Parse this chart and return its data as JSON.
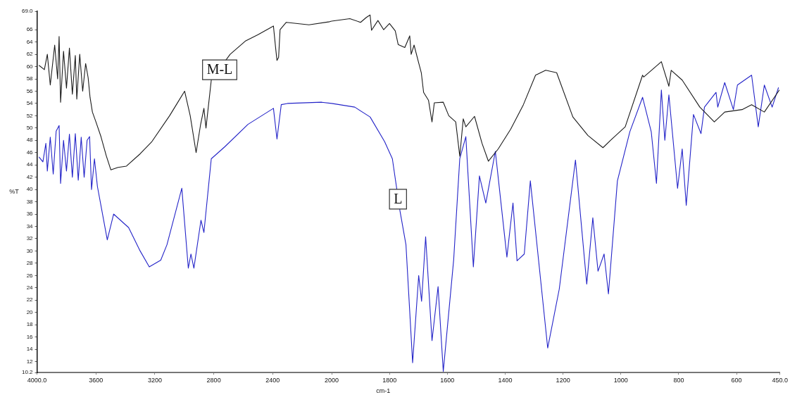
{
  "chart_data": [
    {
      "type": "line",
      "ylabel": "%T",
      "xlim": [
        4000,
        2000
      ],
      "ylim": [
        10.2,
        69.0
      ],
      "xticks": [
        {
          "value": 4000,
          "label": "4000.0"
        },
        3600,
        3200,
        2800,
        2400,
        2000
      ],
      "yticks": [
        {
          "value": 10.2,
          "label": "10.2"
        },
        12,
        14,
        16,
        18,
        20,
        22,
        24,
        26,
        28,
        30,
        32,
        34,
        36,
        38,
        40,
        42,
        44,
        46,
        48,
        50,
        52,
        54,
        56,
        58,
        60,
        62,
        64,
        66,
        {
          "value": 69.0,
          "label": "69.0"
        }
      ],
      "grid": false,
      "legend": false,
      "marker": "none",
      "line_style": "solid",
      "series": [
        {
          "name": "M-L",
          "color": "#1a1a1a",
          "x": [
            3987,
            3950,
            3930,
            3910,
            3880,
            3860,
            3850,
            3840,
            3820,
            3800,
            3780,
            3760,
            3740,
            3730,
            3710,
            3690,
            3670,
            3653,
            3640,
            3624,
            3600,
            3566,
            3530,
            3499,
            3450,
            3393,
            3300,
            3220,
            3100,
            2998,
            2960,
            2920,
            2890,
            2867,
            2853,
            2817,
            2689,
            2583,
            2500,
            2395,
            2380,
            2371,
            2360,
            2350,
            2308,
            2154,
            2014,
            2000
          ],
          "values": [
            60.2,
            59.5,
            62.0,
            57.0,
            63.5,
            58.0,
            64.9,
            54.2,
            62.5,
            56.5,
            63.0,
            55.5,
            61.8,
            54.7,
            62.0,
            56.0,
            60.5,
            58.2,
            55.0,
            52.6,
            51.0,
            48.6,
            45.5,
            43.2,
            43.6,
            43.8,
            45.8,
            47.8,
            52.0,
            56.0,
            52.0,
            46.0,
            50.5,
            53.2,
            50.0,
            57.8,
            62.0,
            64.2,
            65.2,
            66.6,
            63.0,
            61.0,
            61.5,
            66.0,
            67.2,
            66.8,
            67.3,
            67.4
          ]
        },
        {
          "color": "#2323c8",
          "x": [
            3987,
            3960,
            3940,
            3930,
            3910,
            3890,
            3870,
            3850,
            3840,
            3820,
            3800,
            3780,
            3760,
            3740,
            3720,
            3700,
            3680,
            3660,
            3643,
            3630,
            3610,
            3590,
            3566,
            3523,
            3480,
            3378,
            3300,
            3238,
            3160,
            3118,
            3017,
            2973,
            2955,
            2935,
            2887,
            2867,
            2817,
            2723,
            2568,
            2395,
            2371,
            2342,
            2300,
            2067,
            2000
          ],
          "values": [
            45.3,
            44.5,
            47.5,
            43.0,
            48.5,
            42.5,
            49.5,
            50.4,
            41.0,
            48.0,
            43.0,
            49.0,
            42.0,
            49.1,
            41.5,
            48.5,
            42.0,
            48.0,
            48.6,
            40.0,
            45.0,
            40.5,
            37.4,
            31.8,
            36.0,
            33.8,
            30.0,
            27.4,
            28.5,
            31.0,
            40.2,
            27.2,
            29.5,
            27.2,
            35.0,
            33.0,
            45.0,
            47.0,
            50.6,
            53.2,
            48.2,
            53.8,
            54.0,
            54.2,
            54.0
          ]
        }
      ]
    },
    {
      "type": "line",
      "xlabel": "cm-1",
      "xlim": [
        2000,
        450
      ],
      "ylim": [
        10.2,
        69.0
      ],
      "tick_labels": "x",
      "xticks": [
        1800,
        1600,
        1400,
        1200,
        1000,
        800,
        600,
        {
          "value": 450,
          "label": "450.0"
        }
      ],
      "grid": false,
      "legend": false,
      "marker": "none",
      "line_style": "solid",
      "series": [
        {
          "color": "#1a1a1a",
          "x": [
            2000,
            1937,
            1900,
            1880,
            1867,
            1862,
            1840,
            1820,
            1800,
            1780,
            1770,
            1747,
            1730,
            1725,
            1715,
            1699,
            1690,
            1682,
            1665,
            1653,
            1645,
            1614,
            1595,
            1571,
            1557,
            1545,
            1536,
            1506,
            1480,
            1458,
            1424,
            1381,
            1337,
            1295,
            1260,
            1222,
            1166,
            1114,
            1062,
            1036,
            985,
            925,
            921,
            860,
            834,
            826,
            788,
            727,
            677,
            641,
            581,
            548,
            504,
            452
          ],
          "values": [
            67.4,
            67.8,
            67.2,
            68.0,
            68.4,
            65.9,
            67.5,
            66.0,
            67.0,
            65.8,
            63.6,
            63.1,
            65.0,
            62.0,
            63.5,
            60.6,
            59.0,
            55.8,
            54.5,
            51.0,
            54.1,
            54.2,
            52.0,
            51.0,
            45.4,
            51.5,
            50.2,
            51.9,
            47.5,
            44.6,
            46.6,
            49.8,
            53.8,
            58.6,
            59.4,
            59.0,
            51.8,
            48.8,
            46.8,
            48.0,
            50.2,
            58.6,
            58.3,
            60.8,
            56.8,
            59.4,
            57.8,
            53.4,
            51.0,
            52.6,
            53.0,
            53.8,
            52.6,
            56.2
          ]
        },
        {
          "name": "L",
          "color": "#2323c8",
          "x": [
            2000,
            1920,
            1867,
            1817,
            1790,
            1764,
            1743,
            1720,
            1699,
            1689,
            1675,
            1653,
            1632,
            1614,
            1578,
            1557,
            1536,
            1510,
            1489,
            1467,
            1434,
            1394,
            1373,
            1359,
            1334,
            1313,
            1253,
            1213,
            1157,
            1118,
            1097,
            1079,
            1058,
            1043,
            1012,
            969,
            925,
            895,
            877,
            860,
            848,
            834,
            804,
            788,
            774,
            749,
            723,
            711,
            671,
            665,
            641,
            611,
            597,
            548,
            525,
            504,
            477,
            455
          ],
          "values": [
            54.0,
            53.4,
            51.8,
            47.8,
            45.0,
            36.6,
            31.0,
            11.8,
            26.0,
            21.8,
            32.3,
            15.4,
            24.2,
            10.4,
            28.6,
            45.0,
            48.6,
            27.4,
            42.2,
            37.8,
            46.2,
            29.0,
            37.8,
            28.4,
            29.5,
            41.4,
            14.2,
            23.8,
            44.8,
            24.6,
            35.4,
            26.7,
            29.5,
            23.0,
            41.4,
            49.4,
            55.0,
            49.4,
            41.0,
            56.2,
            48.0,
            55.4,
            40.2,
            46.6,
            37.4,
            52.2,
            49.1,
            53.4,
            55.8,
            53.4,
            57.4,
            53.0,
            57.0,
            58.6,
            50.2,
            57.0,
            53.4,
            56.6
          ]
        }
      ]
    }
  ]
}
